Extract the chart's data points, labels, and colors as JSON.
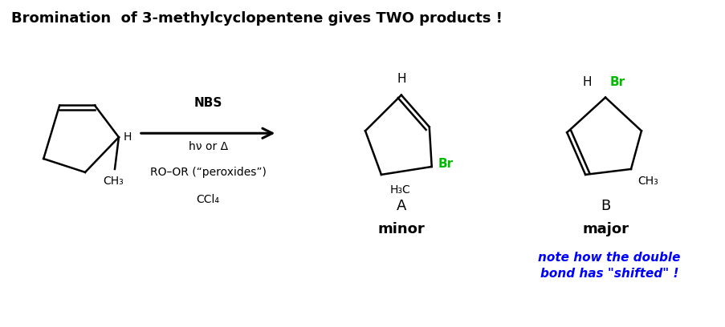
{
  "title": "Bromination  of 3-methylcyclopentene gives TWO products !",
  "title_fontsize": 13,
  "bg_color": "#ffffff",
  "black": "#000000",
  "green": "#00bb00",
  "blue": "#0000ff",
  "reagents": [
    "NBS",
    "hν or Δ",
    "RO–OR (“peroxides”)",
    "CCl₄"
  ],
  "label_A": "A",
  "label_B": "B",
  "minor": "minor",
  "major": "major",
  "note_line1": "note how the double",
  "note_line2": "bond has \"shifted\" !"
}
